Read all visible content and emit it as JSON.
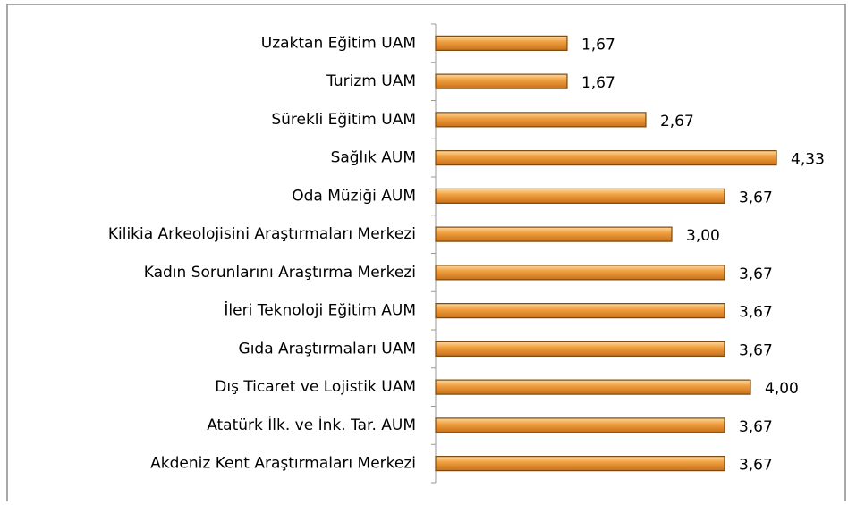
{
  "chart_data": {
    "type": "barh",
    "categories": [
      "Uzaktan Eğitim UAM",
      "Turizm UAM",
      "Sürekli Eğitim UAM",
      "Sağlık AUM",
      "Oda Müziği AUM",
      "Kilikia Arkeolojisini Araştırmaları Merkezi",
      "Kadın Sorunlarını Araştırma Merkezi",
      "İleri Teknoloji Eğitim AUM",
      "Gıda Araştırmaları UAM",
      "Dış Ticaret ve Lojistik UAM",
      "Atatürk İlk. ve İnk. Tar. AUM",
      "Akdeniz Kent Araştırmaları Merkezi"
    ],
    "values": [
      1.67,
      1.67,
      2.67,
      4.33,
      3.67,
      3.0,
      3.67,
      3.67,
      3.67,
      4.0,
      3.67,
      3.67
    ],
    "value_labels": [
      "1,67",
      "1,67",
      "2,67",
      "4,33",
      "3,67",
      "3,00",
      "3,67",
      "3,67",
      "3,67",
      "4,00",
      "3,67",
      "3,67"
    ],
    "color": "#f0a040",
    "xlim": [
      0,
      5
    ]
  }
}
